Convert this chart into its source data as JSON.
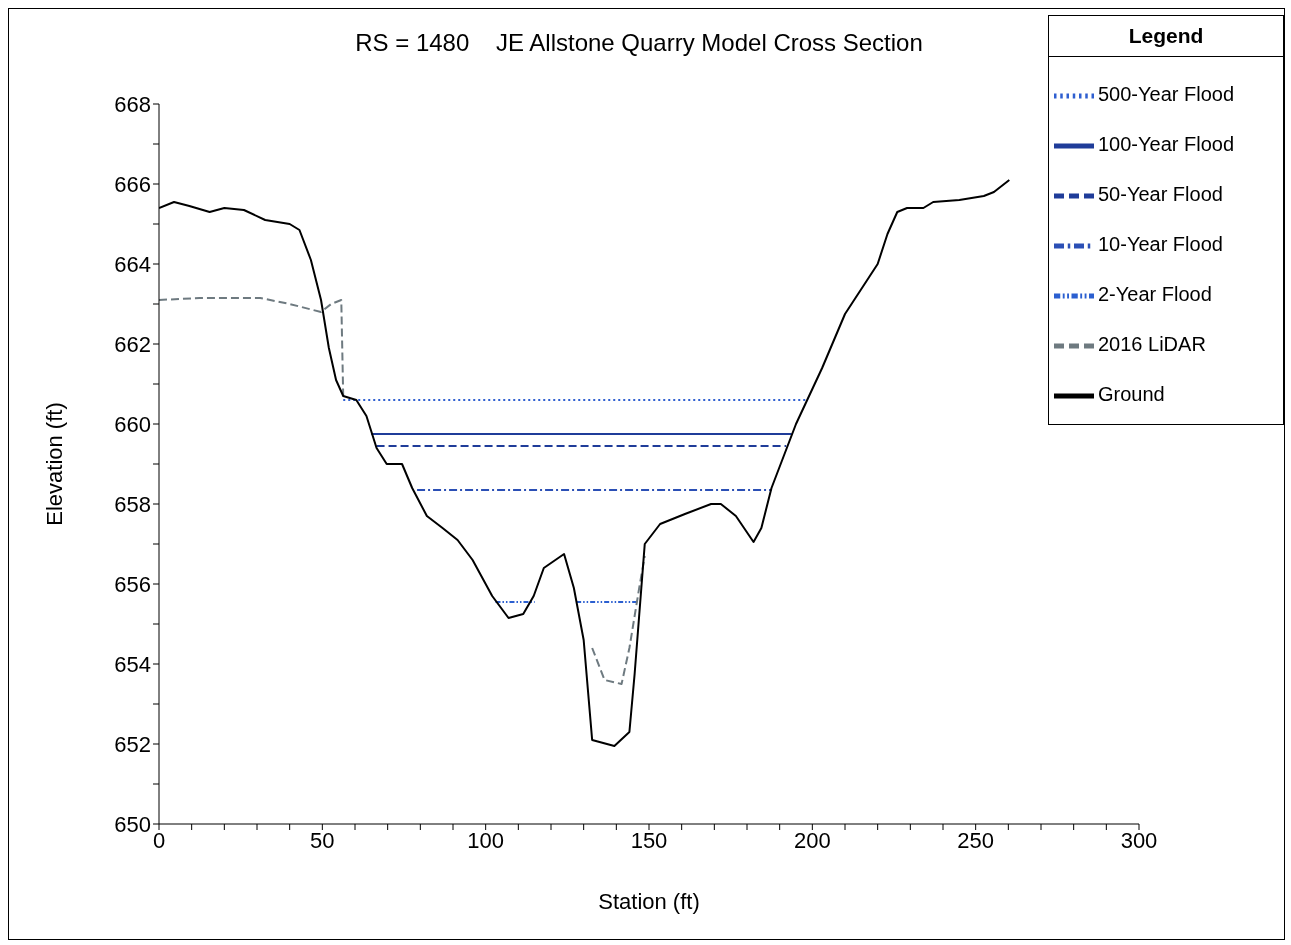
{
  "chart_data": {
    "type": "line",
    "title": "RS = 1480    JE Allstone Quarry Model Cross Section",
    "xlabel": "Station (ft)",
    "ylabel": "Elevation (ft)",
    "legend_title": "Legend",
    "legend": "top right",
    "grid": false,
    "marker": "none",
    "xlim": [
      0,
      300
    ],
    "ylim": [
      650,
      668
    ],
    "xticks": [
      0,
      {
        "value": 10,
        "label": null
      },
      {
        "value": 20,
        "label": null
      },
      {
        "value": 30,
        "label": null
      },
      {
        "value": 40,
        "label": null
      },
      50,
      {
        "value": 60,
        "label": null
      },
      {
        "value": 70,
        "label": null
      },
      {
        "value": 80,
        "label": null
      },
      {
        "value": 90,
        "label": null
      },
      100,
      {
        "value": 110,
        "label": null
      },
      {
        "value": 120,
        "label": null
      },
      {
        "value": 130,
        "label": null
      },
      {
        "value": 140,
        "label": null
      },
      150,
      {
        "value": 160,
        "label": null
      },
      {
        "value": 170,
        "label": null
      },
      {
        "value": 180,
        "label": null
      },
      {
        "value": 190,
        "label": null
      },
      200,
      {
        "value": 210,
        "label": null
      },
      {
        "value": 220,
        "label": null
      },
      {
        "value": 230,
        "label": null
      },
      {
        "value": 240,
        "label": null
      },
      250,
      {
        "value": 260,
        "label": null
      },
      {
        "value": 270,
        "label": null
      },
      {
        "value": 280,
        "label": null
      },
      {
        "value": 290,
        "label": null
      },
      300
    ],
    "yticks": [
      650,
      {
        "value": 651,
        "label": null
      },
      652,
      {
        "value": 653,
        "label": null
      },
      654,
      {
        "value": 655,
        "label": null
      },
      656,
      {
        "value": 657,
        "label": null
      },
      658,
      {
        "value": 659,
        "label": null
      },
      660,
      {
        "value": 661,
        "label": null
      },
      662,
      {
        "value": 663,
        "label": null
      },
      664,
      {
        "value": 665,
        "label": null
      },
      666,
      {
        "value": 667,
        "label": null
      },
      668
    ],
    "series": [
      {
        "name": "500-Year Flood",
        "color": "#2f5fd0",
        "line_style": "dotted",
        "x": [
          56.4,
          198.3
        ],
        "values": [
          660.6,
          660.6
        ]
      },
      {
        "name": "100-Year Flood",
        "color": "#1f3c99",
        "line_style": "solid",
        "x": [
          65,
          193.7
        ],
        "values": [
          659.75,
          659.75
        ]
      },
      {
        "name": "50-Year Flood",
        "color": "#1f3c99",
        "line_style": "dashed",
        "x": [
          66.6,
          192
        ],
        "values": [
          659.45,
          659.45
        ]
      },
      {
        "name": "10-Year Flood",
        "color": "#2b4fb5",
        "line_style": "dashdot",
        "x": [
          79,
          187.5
        ],
        "values": [
          658.35,
          658.35
        ]
      },
      {
        "name": "2-Year Flood",
        "color": "#2b5fd0",
        "line_style": "dashdotdot",
        "x": [
          103,
          115,
          121,
          127.7,
          147
        ],
        "values": [
          655.55,
          655.55,
          null,
          655.55,
          655.55
        ]
      },
      {
        "name": "2016 LiDAR",
        "color": "#6e7a80",
        "line_style": "dashed",
        "x": [
          0,
          12.4,
          31,
          40,
          49.6,
          52.7,
          55.8,
          56.4,
          94,
          132.6,
          136.4,
          141.6,
          144,
          147,
          148.7
        ],
        "values": [
          663.1,
          663.15,
          663.15,
          663.0,
          662.8,
          663.0,
          663.1,
          660.65,
          null,
          654.4,
          653.6,
          653.5,
          654.4,
          655.9,
          656.7
        ]
      },
      {
        "name": "Ground",
        "color": "#000000",
        "line_style": "solid",
        "x": [
          0,
          4.6,
          9.3,
          15.5,
          20,
          26,
          32.5,
          40,
          43,
          46.5,
          49.6,
          52,
          54.2,
          56.4,
          60.4,
          63.5,
          66.6,
          69.7,
          74.4,
          77.5,
          82,
          86.8,
          91.4,
          96,
          102,
          107,
          111.5,
          114.7,
          117.8,
          124,
          127,
          130,
          132.6,
          139.4,
          144,
          145.6,
          148.7,
          153.4,
          161,
          169,
          172,
          176.6,
          182,
          184.4,
          187.5,
          195,
          203,
          210,
          216,
          220,
          223,
          226,
          229,
          234,
          237,
          245,
          252.5,
          255.6,
          260.3
        ],
        "values": [
          665.4,
          665.55,
          665.45,
          665.3,
          665.4,
          665.35,
          665.1,
          665.0,
          664.85,
          664.1,
          663.1,
          661.9,
          661.1,
          660.7,
          660.6,
          660.2,
          659.4,
          659.0,
          659.0,
          658.4,
          657.7,
          657.4,
          657.1,
          656.6,
          655.7,
          655.15,
          655.25,
          655.7,
          656.4,
          656.75,
          655.9,
          654.6,
          652.1,
          651.95,
          652.3,
          653.75,
          657.0,
          657.5,
          657.75,
          658.0,
          658.0,
          657.7,
          657.05,
          657.4,
          658.4,
          660.0,
          661.4,
          662.75,
          663.5,
          664.0,
          664.75,
          665.3,
          665.4,
          665.4,
          665.55,
          665.6,
          665.7,
          665.8,
          666.1
        ]
      }
    ]
  }
}
